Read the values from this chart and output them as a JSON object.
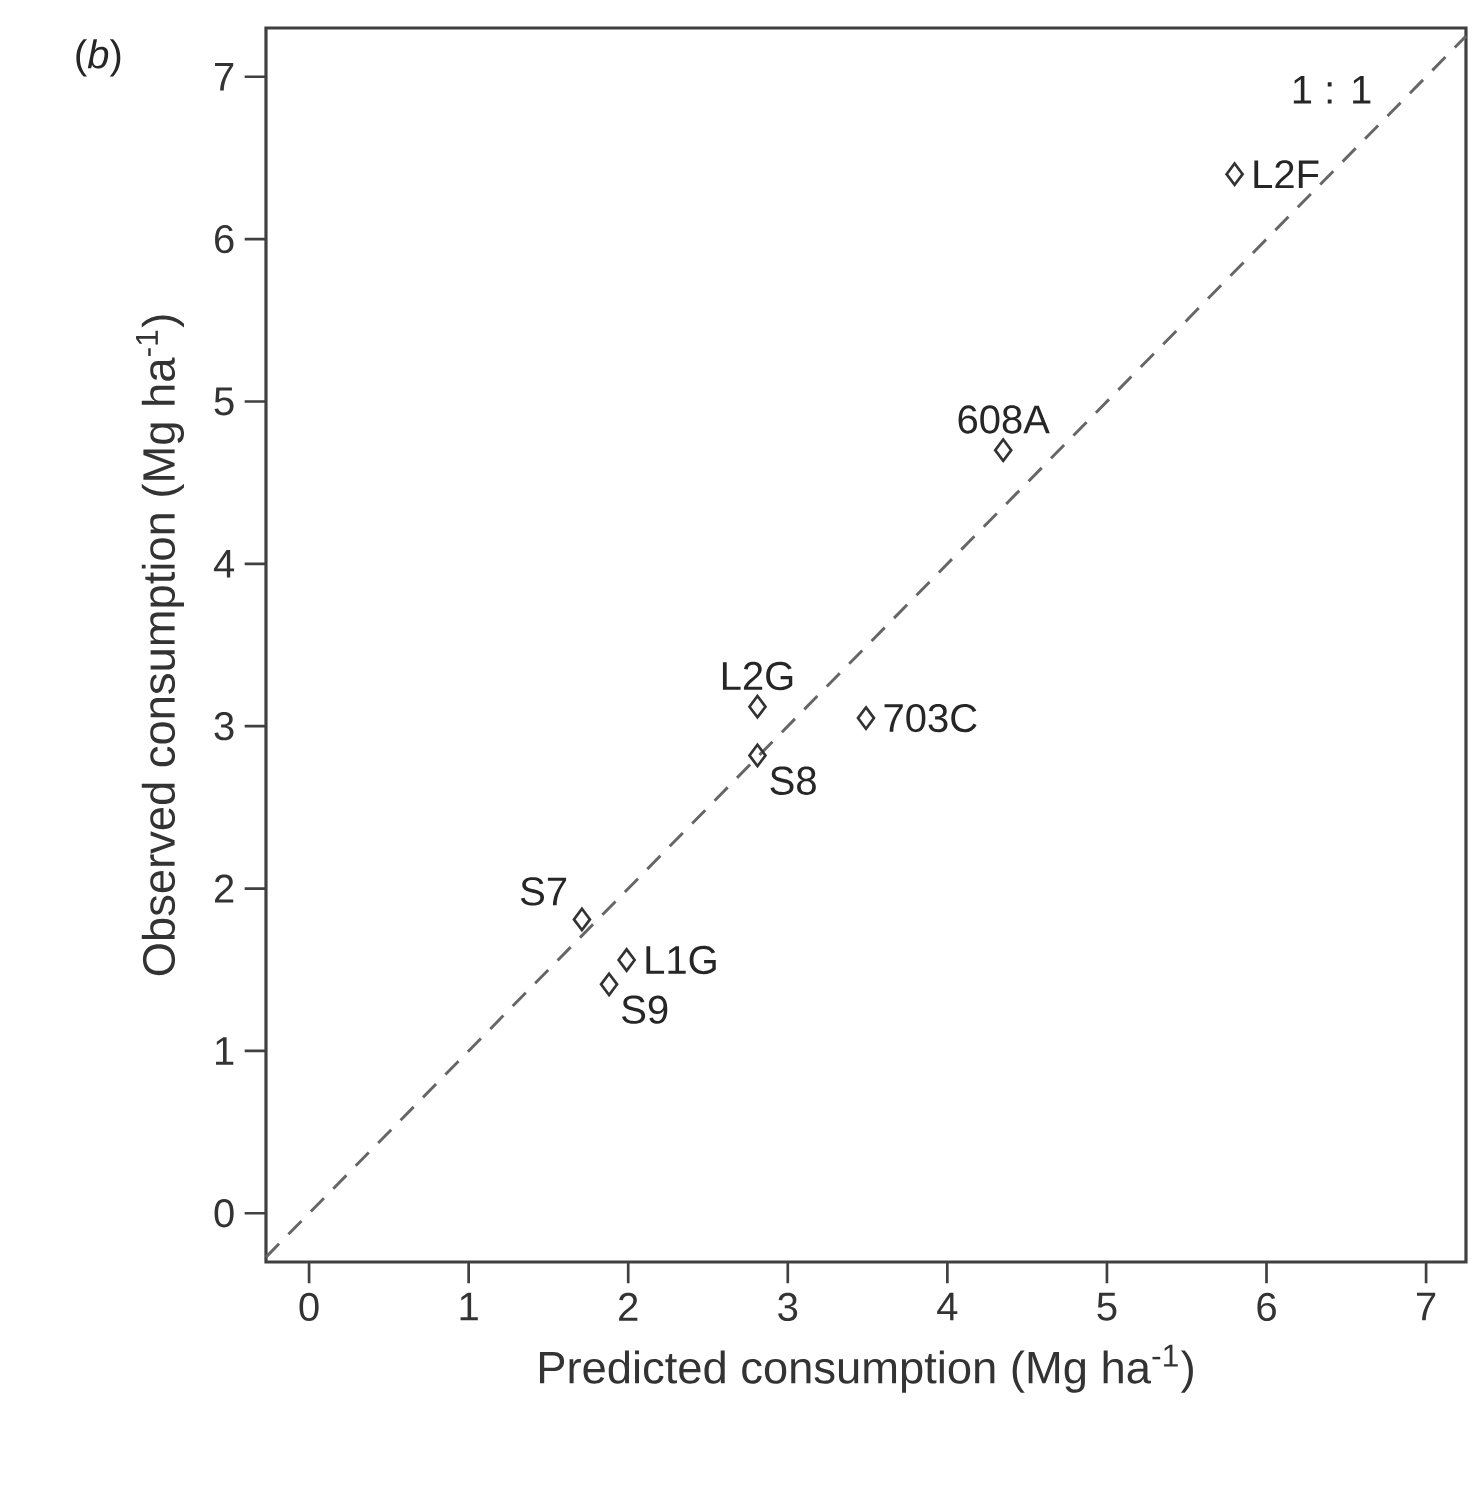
{
  "chart_data": {
    "type": "scatter",
    "xlabel": "Predicted consumption (Mg ha$^{-1}$)",
    "ylabel": "Observed consumption (Mg ha$^{-1}$)",
    "xlim": [
      -0.27,
      7.25
    ],
    "ylim": [
      -0.3,
      7.3
    ],
    "xticks": [
      0,
      1,
      2,
      3,
      4,
      5,
      6,
      7
    ],
    "yticks": [
      0,
      1,
      2,
      3,
      4,
      5,
      6,
      7
    ],
    "grid": false,
    "series": [
      {
        "marker": "diamond",
        "color": "#333333",
        "x": [
          5.8,
          4.35,
          2.81,
          3.49,
          2.81,
          1.71,
          1.99,
          1.88
        ],
        "values": [
          6.4,
          4.7,
          3.12,
          3.05,
          2.82,
          1.81,
          1.56,
          1.41
        ]
      },
      {
        "type": "line",
        "marker": "none",
        "line_style": "dashed",
        "color": "#666666",
        "x": [
          -0.27,
          7.25
        ],
        "values": [
          -0.27,
          7.25
        ]
      }
    ],
    "annotations": [
      "(*b*)",
      {
        "text": "L2F",
        "x": 5.8,
        "y": 6.4
      },
      {
        "text": "608A",
        "x": 4.35,
        "y": 4.7
      },
      {
        "text": "L2G",
        "x": 2.81,
        "y": 3.12
      },
      {
        "text": "703C",
        "x": 3.49,
        "y": 3.05
      },
      {
        "text": "S8",
        "x": 2.81,
        "y": 2.82
      },
      {
        "text": "S7",
        "x": 1.71,
        "y": 1.81
      },
      {
        "text": "L1G",
        "x": 1.99,
        "y": 1.56
      },
      {
        "text": "S9",
        "x": 1.88,
        "y": 1.41
      },
      {
        "text": "1 : 1",
        "x": 6.75,
        "y": 6.75
      }
    ]
  }
}
